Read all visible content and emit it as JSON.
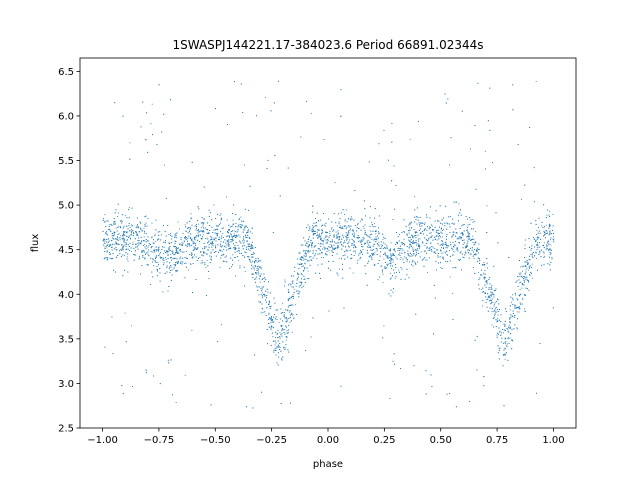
{
  "chart_data": {
    "type": "scatter",
    "title": "1SWASPJ144221.17-384023.6 Period 66891.02344s",
    "xlabel": "phase",
    "ylabel": "flux",
    "xlim": [
      -1.1,
      1.1
    ],
    "ylim": [
      2.5,
      6.65
    ],
    "x_ticks": [
      -1.0,
      -0.75,
      -0.5,
      -0.25,
      0.0,
      0.25,
      0.5,
      0.75,
      1.0
    ],
    "x_tick_labels": [
      "−1.00",
      "−0.75",
      "−0.50",
      "−0.25",
      "0.00",
      "0.25",
      "0.50",
      "0.75",
      "1.00"
    ],
    "y_ticks": [
      2.5,
      3.0,
      3.5,
      4.0,
      4.5,
      5.0,
      5.5,
      6.0,
      6.5
    ],
    "y_tick_labels": [
      "2.5",
      "3.0",
      "3.5",
      "4.0",
      "4.5",
      "5.0",
      "5.5",
      "6.0",
      "6.5"
    ],
    "grid": false,
    "marker_color": "#1f77b4",
    "series": [
      {
        "name": "",
        "phase_range": [
          -1.0,
          1.0
        ],
        "baseline_flux": 4.6,
        "baseline_scatter": 0.15,
        "eclipses": [
          {
            "center_phase": -0.22,
            "min_flux": 3.45
          },
          {
            "center_phase": 0.78,
            "min_flux": 3.45
          }
        ],
        "secondary_dips": [
          {
            "center_phase": 0.28,
            "min_flux": 4.4
          },
          {
            "center_phase": -0.72,
            "min_flux": 4.4
          }
        ],
        "flux_range": [
          2.7,
          6.4
        ]
      }
    ]
  }
}
